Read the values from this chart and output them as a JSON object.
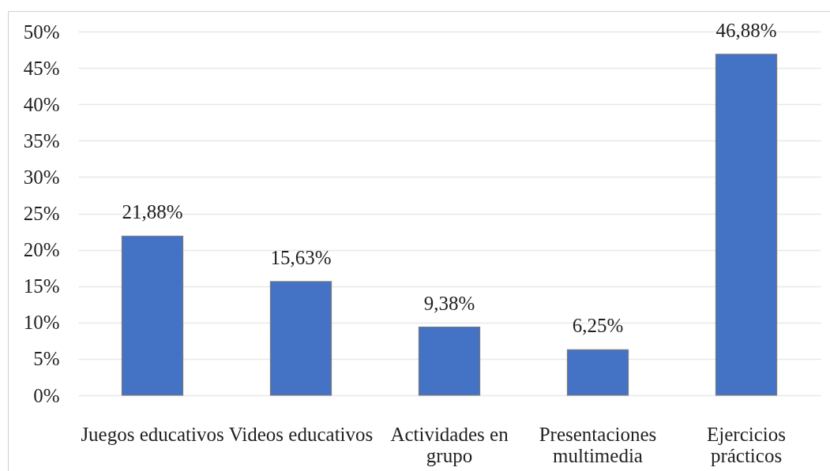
{
  "chart_data": {
    "type": "bar",
    "categories": [
      "Juegos educativos",
      "Videos educativos",
      "Actividades en grupo",
      "Presentaciones multimedia",
      "Ejercicios prácticos"
    ],
    "values": [
      21.88,
      15.63,
      9.38,
      6.25,
      46.88
    ],
    "value_labels": [
      "21,88%",
      "15,63%",
      "9,38%",
      "6,25%",
      "46,88%"
    ],
    "color": "#4472c4",
    "ylim": [
      0,
      50
    ],
    "yticks": [
      {
        "value": 0,
        "label": "0%"
      },
      {
        "value": 5,
        "label": "5%"
      },
      {
        "value": 10,
        "label": "10%"
      },
      {
        "value": 15,
        "label": "15%"
      },
      {
        "value": 20,
        "label": "20%"
      },
      {
        "value": 25,
        "label": "25%"
      },
      {
        "value": 30,
        "label": "30%"
      },
      {
        "value": 35,
        "label": "35%"
      },
      {
        "value": 40,
        "label": "40%"
      },
      {
        "value": 45,
        "label": "45%"
      },
      {
        "value": 50,
        "label": "50%"
      }
    ],
    "grid": "y"
  }
}
